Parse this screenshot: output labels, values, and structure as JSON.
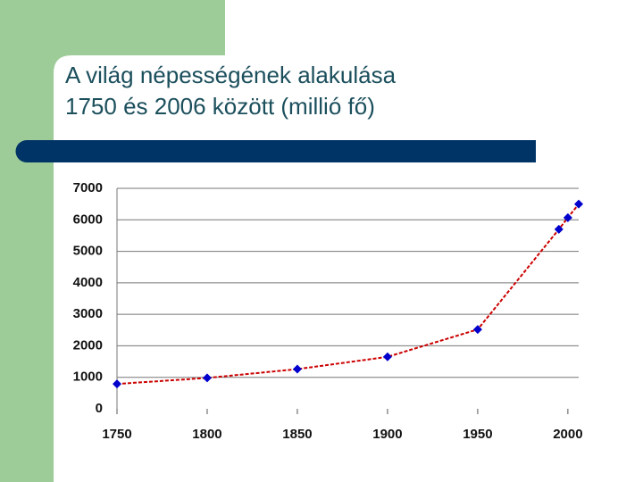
{
  "chart_data": {
    "type": "line",
    "title": [
      "A világ népességének alakulása",
      "1750 és 2006 között (millió fő)"
    ],
    "x": [
      1750,
      1800,
      1850,
      1900,
      1950,
      1995,
      2000,
      2006
    ],
    "series": [
      {
        "name": null,
        "color": "#cc0000",
        "marker_color": "#0000cc",
        "values": [
          790,
          980,
          1260,
          1650,
          2520,
          5700,
          6070,
          6500
        ]
      }
    ],
    "xlim": [
      1750,
      2006
    ],
    "xticks": [
      1750,
      1800,
      1850,
      1900,
      1950,
      2000
    ],
    "ylim": [
      0,
      7000
    ],
    "yticks": [
      0,
      1000,
      2000,
      3000,
      4000,
      5000,
      6000,
      7000
    ],
    "grid": true
  }
}
